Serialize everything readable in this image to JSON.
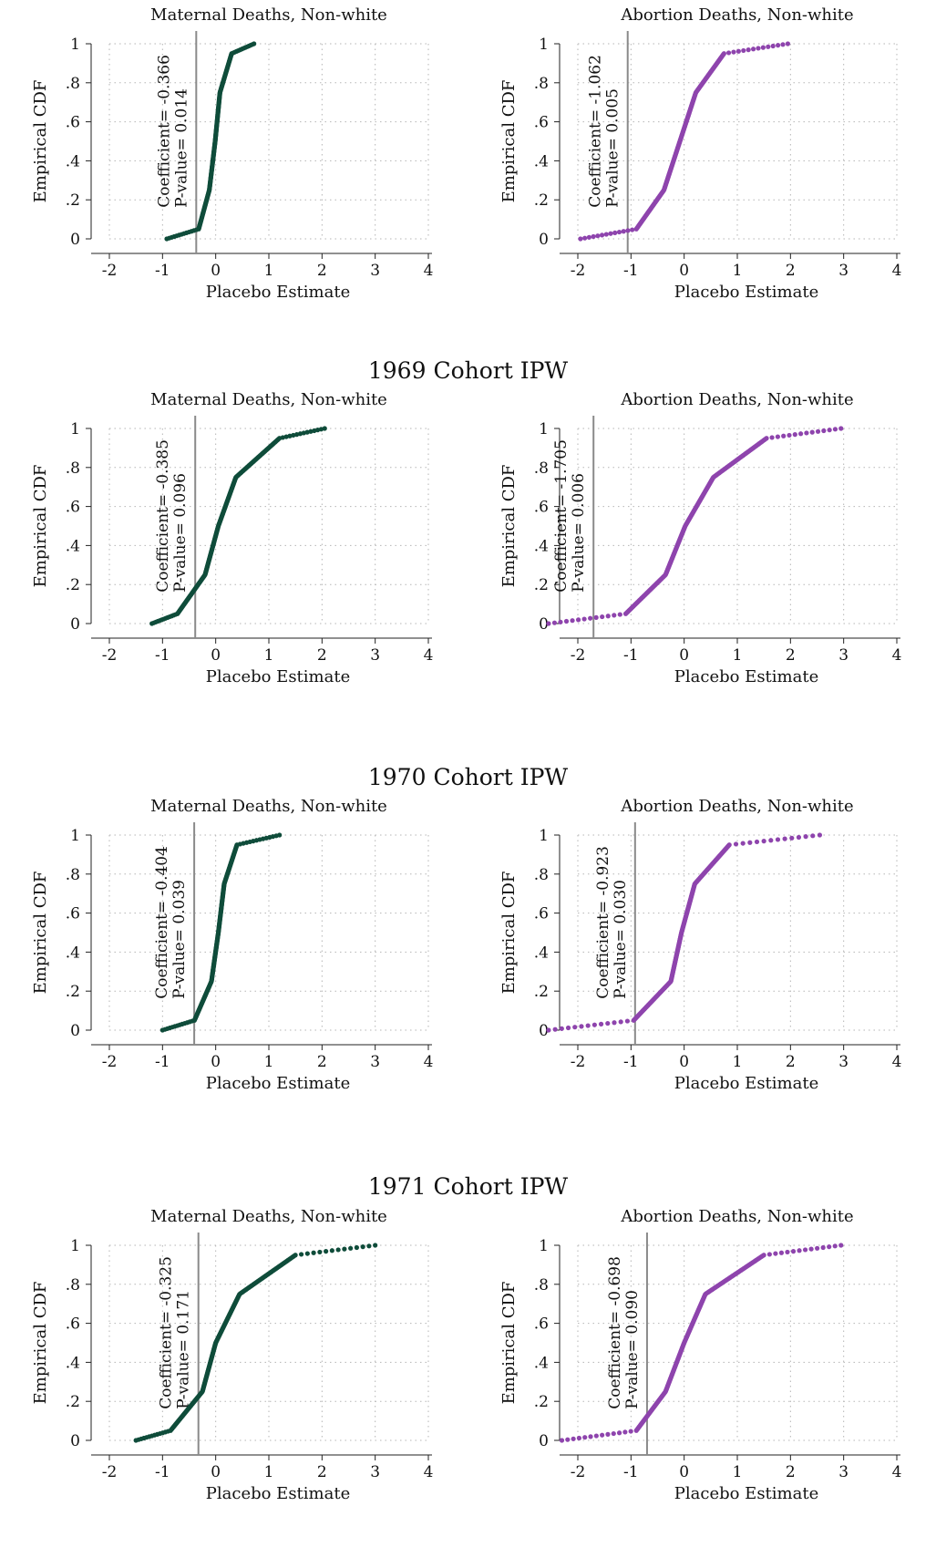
{
  "colors": {
    "maternal": "#0f4c3a",
    "abortion": "#8e44ad",
    "grid": "#b5b5b5",
    "vline": "#8a8a8a"
  },
  "groups": [
    {
      "title": ""
    },
    {
      "title": "1969 Cohort IPW"
    },
    {
      "title": "1970 Cohort IPW"
    },
    {
      "title": "1971 Cohort IPW"
    }
  ],
  "chart_data": [
    {
      "type": "scatter",
      "title": "Maternal Deaths, Non-white",
      "xlabel": "Placebo Estimate",
      "ylabel": "Empirical CDF",
      "xlim": [
        -2,
        4
      ],
      "ylim": [
        0,
        1
      ],
      "xticks": [
        "-2",
        "-1",
        "0",
        "1",
        "2",
        "3",
        "4"
      ],
      "yticks": [
        "0",
        ".2",
        ".4",
        ".6",
        ".8",
        "1"
      ],
      "grid": true,
      "coefficient": "-0.366",
      "pvalue": "0.014",
      "vline_x": -0.366,
      "color_key": "maternal",
      "cdf": {
        "min": -0.92,
        "max": 0.72,
        "q05": -0.32,
        "q25": -0.12,
        "q50": -0.01,
        "q75": 0.08,
        "q95": 0.3
      }
    },
    {
      "type": "scatter",
      "title": "Abortion Deaths, Non-white",
      "xlabel": "Placebo Estimate",
      "ylabel": "Empirical CDF",
      "xlim": [
        -2,
        4
      ],
      "ylim": [
        0,
        1
      ],
      "xticks": [
        "-2",
        "-1",
        "0",
        "1",
        "2",
        "3",
        "4"
      ],
      "yticks": [
        "0",
        ".2",
        ".4",
        ".6",
        ".8",
        "1"
      ],
      "grid": true,
      "coefficient": "-1.062",
      "pvalue": "0.005",
      "vline_x": -1.062,
      "color_key": "abortion",
      "cdf": {
        "min": -1.95,
        "max": 1.95,
        "q05": -0.9,
        "q25": -0.38,
        "q50": -0.08,
        "q75": 0.22,
        "q95": 0.75
      }
    },
    {
      "type": "scatter",
      "title": "Maternal Deaths, Non-white",
      "xlabel": "Placebo Estimate",
      "ylabel": "Empirical CDF",
      "xlim": [
        -2,
        4
      ],
      "ylim": [
        0,
        1
      ],
      "xticks": [
        "-2",
        "-1",
        "0",
        "1",
        "2",
        "3",
        "4"
      ],
      "yticks": [
        "0",
        ".2",
        ".4",
        ".6",
        ".8",
        "1"
      ],
      "grid": true,
      "coefficient": "-0.385",
      "pvalue": "0.096",
      "vline_x": -0.385,
      "color_key": "maternal",
      "cdf": {
        "min": -1.2,
        "max": 2.05,
        "q05": -0.72,
        "q25": -0.2,
        "q50": 0.05,
        "q75": 0.38,
        "q95": 1.2
      }
    },
    {
      "type": "scatter",
      "title": "Abortion Deaths, Non-white",
      "xlabel": "Placebo Estimate",
      "ylabel": "Empirical CDF",
      "xlim": [
        -2,
        4
      ],
      "ylim": [
        0,
        1
      ],
      "xticks": [
        "-2",
        "-1",
        "0",
        "1",
        "2",
        "3",
        "4"
      ],
      "yticks": [
        "0",
        ".2",
        ".4",
        ".6",
        ".8",
        "1"
      ],
      "grid": true,
      "coefficient": "-1.705",
      "pvalue": "0.006",
      "vline_x": -1.705,
      "color_key": "abortion",
      "cdf": {
        "min": -2.55,
        "max": 2.95,
        "q05": -1.1,
        "q25": -0.35,
        "q50": 0.02,
        "q75": 0.55,
        "q95": 1.55
      }
    },
    {
      "type": "scatter",
      "title": "Maternal Deaths, Non-white",
      "xlabel": "Placebo Estimate",
      "ylabel": "Empirical CDF",
      "xlim": [
        -2,
        4
      ],
      "ylim": [
        0,
        1
      ],
      "xticks": [
        "-2",
        "-1",
        "0",
        "1",
        "2",
        "3",
        "4"
      ],
      "yticks": [
        "0",
        ".2",
        ".4",
        ".6",
        ".8",
        "1"
      ],
      "grid": true,
      "coefficient": "-0.404",
      "pvalue": "0.039",
      "vline_x": -0.404,
      "color_key": "maternal",
      "cdf": {
        "min": -1.0,
        "max": 1.2,
        "q05": -0.4,
        "q25": -0.08,
        "q50": 0.05,
        "q75": 0.16,
        "q95": 0.4
      }
    },
    {
      "type": "scatter",
      "title": "Abortion Deaths, Non-white",
      "xlabel": "Placebo Estimate",
      "ylabel": "Empirical CDF",
      "xlim": [
        -2,
        4
      ],
      "ylim": [
        0,
        1
      ],
      "xticks": [
        "-2",
        "-1",
        "0",
        "1",
        "2",
        "3",
        "4"
      ],
      "yticks": [
        "0",
        ".2",
        ".4",
        ".6",
        ".8",
        "1"
      ],
      "grid": true,
      "coefficient": "-0.923",
      "pvalue": "0.030",
      "vline_x": -0.923,
      "color_key": "abortion",
      "cdf": {
        "min": -2.55,
        "max": 2.55,
        "q05": -0.95,
        "q25": -0.25,
        "q50": -0.05,
        "q75": 0.2,
        "q95": 0.85
      }
    },
    {
      "type": "scatter",
      "title": "Maternal Deaths, Non-white",
      "xlabel": "Placebo Estimate",
      "ylabel": "Empirical CDF",
      "xlim": [
        -2,
        4
      ],
      "ylim": [
        0,
        1
      ],
      "xticks": [
        "-2",
        "-1",
        "0",
        "1",
        "2",
        "3",
        "4"
      ],
      "yticks": [
        "0",
        ".2",
        ".4",
        ".6",
        ".8",
        "1"
      ],
      "grid": true,
      "coefficient": "-0.325",
      "pvalue": "0.171",
      "vline_x": -0.325,
      "color_key": "maternal",
      "cdf": {
        "min": -1.5,
        "max": 3.0,
        "q05": -0.85,
        "q25": -0.25,
        "q50": 0.0,
        "q75": 0.45,
        "q95": 1.5
      }
    },
    {
      "type": "scatter",
      "title": "Abortion Deaths, Non-white",
      "xlabel": "Placebo Estimate",
      "ylabel": "Empirical CDF",
      "xlim": [
        -2,
        4
      ],
      "ylim": [
        0,
        1
      ],
      "xticks": [
        "-2",
        "-1",
        "0",
        "1",
        "2",
        "3",
        "4"
      ],
      "yticks": [
        "0",
        ".2",
        ".4",
        ".6",
        ".8",
        "1"
      ],
      "grid": true,
      "coefficient": "-0.698",
      "pvalue": "0.090",
      "vline_x": -0.698,
      "color_key": "abortion",
      "cdf": {
        "min": -2.3,
        "max": 2.95,
        "q05": -0.9,
        "q25": -0.35,
        "q50": 0.0,
        "q75": 0.4,
        "q95": 1.5
      }
    }
  ]
}
